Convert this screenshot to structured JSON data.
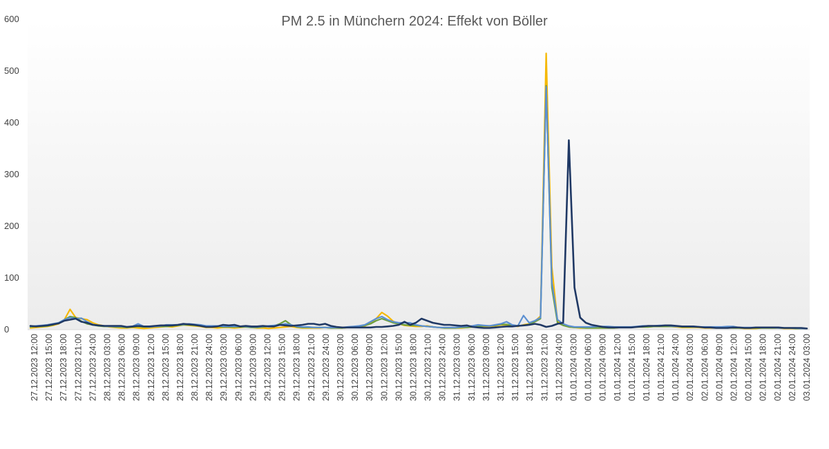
{
  "chart_data": {
    "type": "line",
    "title": "PM 2.5 in Münchern 2024: Effekt von Böller",
    "xlabel": "",
    "ylabel": "",
    "ylim": [
      0,
      600
    ],
    "yticks": [
      "0",
      "100",
      "200",
      "300",
      "400",
      "500",
      "600"
    ],
    "grid": false,
    "legend": "none",
    "xtick_labels": [
      "27.12.2023 12:00",
      "27.12.2023 15:00",
      "27.12.2023 18:00",
      "27.12.2023 21:00",
      "27.12.2023 24:00",
      "28.12.2023 03:00",
      "28.12.2023 06:00",
      "28.12.2023 09:00",
      "28.12.2023 12:00",
      "28.12.2023 15:00",
      "28.12.2023 18:00",
      "28.12.2023 21:00",
      "28.12.2023 24:00",
      "29.12.2023 03:00",
      "29.12.2023 06:00",
      "29.12.2023 09:00",
      "29.12.2023 12:00",
      "29.12.2023 15:00",
      "29.12.2023 18:00",
      "29.12.2023 21:00",
      "29.12.2023 24:00",
      "30.12.2023 03:00",
      "30.12.2023 06:00",
      "30.12.2023 09:00",
      "30.12.2023 12:00",
      "30.12.2023 15:00",
      "30.12.2023 18:00",
      "30.12.2023 21:00",
      "30.12.2023 24:00",
      "31.12.2023 03:00",
      "31.12.2023 06:00",
      "31.12.2023 09:00",
      "31.12.2023 12:00",
      "31.12.2023 15:00",
      "31.12.2023 18:00",
      "31.12.2023 21:00",
      "31.12.2023 24:00",
      "01.01.2024 03:00",
      "01.01.2024 06:00",
      "01.01.2024 09:00",
      "01.01.2024 12:00",
      "01.01.2024 15:00",
      "01.01.2024 18:00",
      "01.01.2024 21:00",
      "01.01.2024 24:00",
      "02.01.2024 03:00",
      "02.01.2024 06:00",
      "02.01.2024 09:00",
      "02.01.2024 12:00",
      "02.01.2024 15:00",
      "02.01.2024 18:00",
      "02.01.2024 21:00",
      "02.01.2024 24:00",
      "03.01.2024 03:00"
    ],
    "series": [
      {
        "color": "#f5b800",
        "values": [
          2,
          3,
          4,
          5,
          7,
          10,
          18,
          38,
          22,
          20,
          18,
          12,
          8,
          6,
          4,
          3,
          2,
          2,
          3,
          2,
          1,
          2,
          3,
          4,
          5,
          4,
          6,
          8,
          7,
          6,
          5,
          3,
          3,
          2,
          3,
          3,
          2,
          3,
          4,
          3,
          2,
          2,
          1,
          2,
          3,
          4,
          5,
          3,
          2,
          2,
          2,
          2,
          3,
          2,
          2,
          2,
          3,
          4,
          5,
          6,
          12,
          20,
          32,
          25,
          15,
          10,
          7,
          6,
          5,
          5,
          6,
          4,
          3,
          2,
          2,
          2,
          2,
          3,
          4,
          4,
          5,
          5,
          6,
          8,
          8,
          6,
          5,
          8,
          10,
          15,
          25,
          533,
          120,
          15,
          8,
          4,
          3,
          2,
          2,
          2,
          2,
          2,
          2,
          2,
          3,
          3,
          3,
          4,
          4,
          4,
          5,
          5,
          5,
          5,
          4,
          3,
          3,
          3,
          3,
          2,
          2,
          2,
          2,
          2,
          2,
          2,
          1,
          1,
          1,
          2,
          2,
          2,
          2,
          1,
          1,
          1,
          1,
          1
        ]
      },
      {
        "color": "#6b9e3e",
        "values": [
          4,
          5,
          5,
          6,
          8,
          12,
          18,
          24,
          22,
          15,
          10,
          8,
          6,
          5,
          5,
          4,
          4,
          3,
          4,
          5,
          4,
          4,
          5,
          5,
          5,
          6,
          7,
          8,
          8,
          7,
          6,
          4,
          5,
          5,
          4,
          4,
          4,
          4,
          4,
          3,
          3,
          4,
          5,
          6,
          10,
          16,
          8,
          4,
          3,
          3,
          3,
          3,
          3,
          2,
          2,
          2,
          3,
          4,
          5,
          7,
          10,
          16,
          20,
          16,
          12,
          10,
          8,
          7,
          7,
          6,
          5,
          4,
          3,
          2,
          2,
          2,
          3,
          3,
          4,
          5,
          6,
          6,
          7,
          9,
          9,
          7,
          6,
          7,
          9,
          14,
          20,
          470,
          80,
          12,
          7,
          4,
          3,
          3,
          2,
          2,
          2,
          2,
          2,
          2,
          3,
          3,
          3,
          4,
          4,
          4,
          5,
          5,
          5,
          5,
          5,
          4,
          4,
          4,
          4,
          3,
          3,
          3,
          3,
          3,
          2,
          2,
          2,
          2,
          2,
          2,
          2,
          2,
          2,
          2,
          2,
          1,
          1,
          1
        ]
      },
      {
        "color": "#5b8fd1",
        "values": [
          5,
          6,
          7,
          8,
          10,
          12,
          18,
          22,
          20,
          21,
          14,
          9,
          7,
          6,
          5,
          5,
          5,
          4,
          5,
          10,
          5,
          4,
          5,
          6,
          8,
          8,
          8,
          9,
          10,
          9,
          8,
          6,
          6,
          6,
          5,
          5,
          5,
          5,
          5,
          4,
          4,
          5,
          6,
          7,
          8,
          10,
          8,
          5,
          4,
          4,
          3,
          3,
          3,
          3,
          3,
          3,
          4,
          5,
          6,
          8,
          14,
          20,
          24,
          18,
          14,
          12,
          12,
          12,
          8,
          6,
          5,
          4,
          3,
          3,
          3,
          3,
          4,
          5,
          6,
          8,
          7,
          6,
          8,
          10,
          14,
          8,
          6,
          26,
          12,
          16,
          22,
          468,
          90,
          18,
          10,
          6,
          4,
          4,
          4,
          4,
          5,
          5,
          5,
          4,
          4,
          4,
          4,
          5,
          6,
          6,
          6,
          7,
          7,
          6,
          5,
          5,
          5,
          4,
          4,
          4,
          4,
          4,
          4,
          5,
          5,
          3,
          3,
          3,
          3,
          3,
          3,
          3,
          2,
          2,
          2,
          2,
          1,
          1
        ]
      },
      {
        "color": "#1f3864",
        "values": [
          6,
          5,
          6,
          7,
          9,
          11,
          16,
          18,
          20,
          14,
          12,
          8,
          7,
          6,
          6,
          6,
          6,
          4,
          5,
          6,
          5,
          5,
          6,
          7,
          7,
          7,
          8,
          10,
          9,
          8,
          6,
          4,
          4,
          5,
          8,
          7,
          8,
          5,
          6,
          5,
          5,
          6,
          5,
          5,
          8,
          7,
          6,
          7,
          8,
          10,
          10,
          8,
          10,
          6,
          4,
          3,
          3,
          3,
          3,
          3,
          3,
          4,
          4,
          5,
          6,
          8,
          14,
          8,
          12,
          20,
          16,
          12,
          10,
          8,
          8,
          7,
          6,
          7,
          4,
          3,
          2,
          2,
          3,
          4,
          5,
          5,
          6,
          7,
          8,
          10,
          8,
          4,
          6,
          10,
          12,
          365,
          80,
          22,
          12,
          8,
          6,
          4,
          3,
          3,
          3,
          3,
          3,
          4,
          5,
          6,
          6,
          6,
          7,
          7,
          6,
          5,
          5,
          5,
          4,
          3,
          3,
          2,
          2,
          2,
          3,
          3,
          2,
          2,
          3,
          3,
          3,
          3,
          3,
          2,
          2,
          2,
          2,
          1
        ]
      }
    ]
  }
}
